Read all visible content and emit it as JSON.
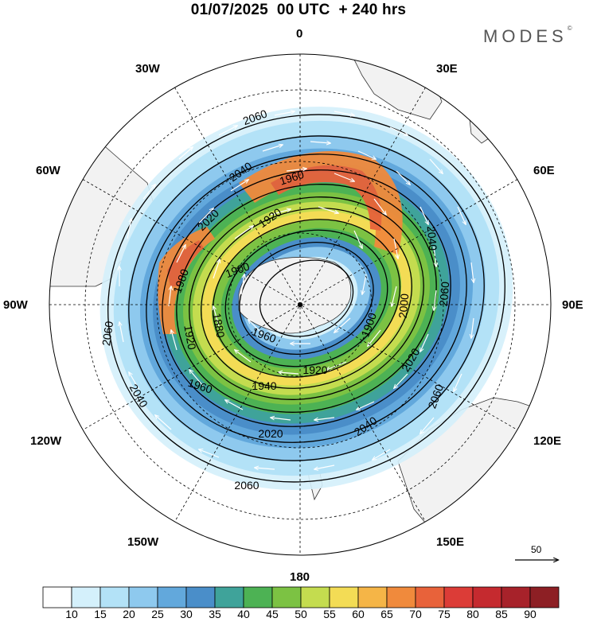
{
  "title": "01/07/2025  00 UTC  + 240 hrs",
  "brand": {
    "name": "MODES",
    "mark": "©"
  },
  "longitude_labels": [
    "0",
    "30E",
    "60E",
    "90E",
    "120E",
    "150E",
    "180",
    "150W",
    "120W",
    "90W",
    "60W",
    "30W"
  ],
  "contour_labels": [
    "2060",
    "2040",
    "2020",
    "2000",
    "1980",
    "1960",
    "1940",
    "1920",
    "1900",
    "1880"
  ],
  "reference_vector": {
    "value": "50"
  },
  "colorbar": {
    "ticks": [
      "10",
      "15",
      "20",
      "25",
      "30",
      "35",
      "40",
      "45",
      "50",
      "55",
      "60",
      "65",
      "70",
      "75",
      "80",
      "85",
      "90"
    ],
    "colors": [
      "#ffffff",
      "#d4f0fb",
      "#b3e2f7",
      "#8ec9ee",
      "#62a8dc",
      "#4a8ec9",
      "#3fa39a",
      "#4db254",
      "#7cc243",
      "#c4dc4f",
      "#f3dc55",
      "#f5b547",
      "#f08a3c",
      "#e8623a",
      "#dc3c37",
      "#c52a2f",
      "#a7222a",
      "#8d1f24"
    ]
  },
  "map": {
    "projection": "south-polar-stereographic",
    "land_color": "#f2f2f2",
    "coast_color": "#333333",
    "grid": "dashed meridians every 30° and latitude circles"
  }
}
